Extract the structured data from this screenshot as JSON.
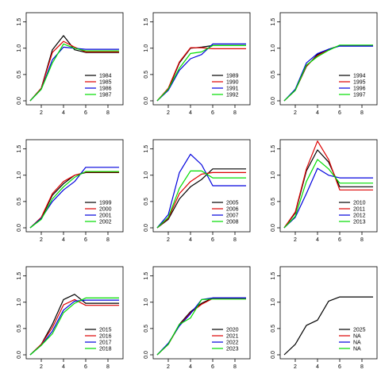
{
  "colors": {
    "palette": [
      "#000000",
      "#dd0000",
      "#0000dd",
      "#00dd00"
    ],
    "axis": "#000000",
    "background": "#ffffff"
  },
  "chart_data": [
    {
      "type": "line",
      "x": [
        1,
        2,
        3,
        4,
        5,
        6,
        7,
        8,
        9
      ],
      "xlim": [
        1,
        9
      ],
      "ylim": [
        0,
        1.6
      ],
      "xticks": [
        "2",
        "4",
        "6",
        "8"
      ],
      "yticks": [
        "0.0",
        "0.5",
        "1.0",
        "1.5"
      ],
      "legend_position": "bottom-right",
      "series": [
        {
          "name": "1984",
          "values": [
            0,
            0.24,
            0.97,
            1.24,
            0.97,
            0.92,
            0.92,
            0.92,
            0.92
          ]
        },
        {
          "name": "1985",
          "values": [
            0,
            0.24,
            0.92,
            1.13,
            1.02,
            0.93,
            0.93,
            0.93,
            0.93
          ]
        },
        {
          "name": "1986",
          "values": [
            0,
            0.22,
            0.78,
            1.02,
            1.0,
            0.98,
            0.98,
            0.98,
            0.98
          ]
        },
        {
          "name": "1987",
          "values": [
            0,
            0.22,
            0.72,
            1.08,
            1.0,
            0.95,
            0.95,
            0.95,
            0.95
          ]
        }
      ]
    },
    {
      "type": "line",
      "x": [
        1,
        2,
        3,
        4,
        5,
        6,
        7,
        8,
        9
      ],
      "xlim": [
        1,
        9
      ],
      "ylim": [
        0,
        1.6
      ],
      "xticks": [
        "2",
        "4",
        "6",
        "8"
      ],
      "yticks": [
        "0.0",
        "0.5",
        "1.0",
        "1.5"
      ],
      "legend_position": "bottom-right",
      "series": [
        {
          "name": "1989",
          "values": [
            0,
            0.22,
            0.72,
            1.0,
            1.02,
            1.05,
            1.05,
            1.05,
            1.05
          ]
        },
        {
          "name": "1990",
          "values": [
            0,
            0.24,
            0.74,
            1.01,
            1.01,
            0.99,
            0.99,
            0.99,
            0.99
          ]
        },
        {
          "name": "1991",
          "values": [
            0,
            0.2,
            0.58,
            0.8,
            0.88,
            1.08,
            1.08,
            1.08,
            1.08
          ]
        },
        {
          "name": "1992",
          "values": [
            0,
            0.22,
            0.62,
            0.9,
            0.93,
            1.05,
            1.05,
            1.05,
            1.05
          ]
        }
      ]
    },
    {
      "type": "line",
      "x": [
        1,
        2,
        3,
        4,
        5,
        6,
        7,
        8,
        9
      ],
      "xlim": [
        1,
        9
      ],
      "ylim": [
        0,
        1.6
      ],
      "xticks": [
        "2",
        "4",
        "6",
        "8"
      ],
      "yticks": [
        "0.0",
        "0.5",
        "1.0",
        "1.5"
      ],
      "legend_position": "bottom-right",
      "series": [
        {
          "name": "1994",
          "values": [
            0,
            0.2,
            0.65,
            0.88,
            0.98,
            1.05,
            1.05,
            1.05,
            1.05
          ]
        },
        {
          "name": "1995",
          "values": [
            0,
            0.2,
            0.66,
            0.86,
            0.97,
            1.05,
            1.05,
            1.05,
            1.05
          ]
        },
        {
          "name": "1996",
          "values": [
            0,
            0.22,
            0.72,
            0.9,
            0.98,
            1.04,
            1.04,
            1.04,
            1.04
          ]
        },
        {
          "name": "1997",
          "values": [
            0,
            0.2,
            0.68,
            0.84,
            0.96,
            1.06,
            1.06,
            1.06,
            1.06
          ]
        }
      ]
    },
    {
      "type": "line",
      "x": [
        1,
        2,
        3,
        4,
        5,
        6,
        7,
        8,
        9
      ],
      "xlim": [
        1,
        9
      ],
      "ylim": [
        0,
        1.6
      ],
      "xticks": [
        "2",
        "4",
        "6",
        "8"
      ],
      "yticks": [
        "0.0",
        "0.5",
        "1.0",
        "1.5"
      ],
      "legend_position": "bottom-right",
      "series": [
        {
          "name": "1999",
          "values": [
            0,
            0.18,
            0.62,
            0.84,
            1.0,
            1.05,
            1.05,
            1.05,
            1.05
          ]
        },
        {
          "name": "2000",
          "values": [
            0,
            0.2,
            0.65,
            0.88,
            1.0,
            1.06,
            1.06,
            1.06,
            1.06
          ]
        },
        {
          "name": "2001",
          "values": [
            0,
            0.18,
            0.5,
            0.72,
            0.88,
            1.15,
            1.15,
            1.15,
            1.15
          ]
        },
        {
          "name": "2002",
          "values": [
            0,
            0.16,
            0.55,
            0.78,
            0.96,
            1.07,
            1.07,
            1.07,
            1.07
          ]
        }
      ]
    },
    {
      "type": "line",
      "x": [
        1,
        2,
        3,
        4,
        5,
        6,
        7,
        8,
        9
      ],
      "xlim": [
        1,
        9
      ],
      "ylim": [
        0,
        1.6
      ],
      "xticks": [
        "2",
        "4",
        "6",
        "8"
      ],
      "yticks": [
        "0.0",
        "0.5",
        "1.0",
        "1.5"
      ],
      "legend_position": "bottom-right",
      "series": [
        {
          "name": "2005",
          "values": [
            0,
            0.16,
            0.55,
            0.78,
            0.92,
            1.12,
            1.12,
            1.12,
            1.12
          ]
        },
        {
          "name": "2006",
          "values": [
            0,
            0.18,
            0.65,
            0.88,
            1.02,
            1.05,
            1.05,
            1.05,
            1.05
          ]
        },
        {
          "name": "2007",
          "values": [
            0,
            0.25,
            1.05,
            1.4,
            1.2,
            0.8,
            0.8,
            0.8,
            0.8
          ]
        },
        {
          "name": "2008",
          "values": [
            0,
            0.2,
            0.75,
            1.08,
            1.08,
            0.95,
            0.95,
            0.95,
            0.95
          ]
        }
      ]
    },
    {
      "type": "line",
      "x": [
        1,
        2,
        3,
        4,
        5,
        6,
        7,
        8,
        9
      ],
      "xlim": [
        1,
        9
      ],
      "ylim": [
        0,
        1.6
      ],
      "xticks": [
        "2",
        "4",
        "6",
        "8"
      ],
      "yticks": [
        "0.0",
        "0.5",
        "1.0",
        "1.5"
      ],
      "legend_position": "bottom-right",
      "series": [
        {
          "name": "2010",
          "values": [
            0,
            0.28,
            1.08,
            1.48,
            1.25,
            0.78,
            0.78,
            0.78,
            0.78
          ]
        },
        {
          "name": "2011",
          "values": [
            0,
            0.3,
            1.12,
            1.65,
            1.3,
            0.72,
            0.72,
            0.72,
            0.72
          ]
        },
        {
          "name": "2012",
          "values": [
            0,
            0.2,
            0.65,
            1.13,
            1.0,
            0.95,
            0.95,
            0.95,
            0.95
          ]
        },
        {
          "name": "2013",
          "values": [
            0,
            0.22,
            0.88,
            1.3,
            1.12,
            0.85,
            0.85,
            0.85,
            0.85
          ]
        }
      ]
    },
    {
      "type": "line",
      "x": [
        1,
        2,
        3,
        4,
        5,
        6,
        7,
        8,
        9
      ],
      "xlim": [
        1,
        9
      ],
      "ylim": [
        0,
        1.6
      ],
      "xticks": [
        "2",
        "4",
        "6",
        "8"
      ],
      "yticks": [
        "0.0",
        "0.5",
        "1.0",
        "1.5"
      ],
      "legend_position": "bottom-right",
      "series": [
        {
          "name": "2015",
          "values": [
            0,
            0.2,
            0.58,
            1.05,
            1.15,
            0.98,
            0.98,
            0.98,
            0.98
          ]
        },
        {
          "name": "2016",
          "values": [
            0,
            0.2,
            0.52,
            0.95,
            1.05,
            0.94,
            0.94,
            0.94,
            0.94
          ]
        },
        {
          "name": "2017",
          "values": [
            0,
            0.18,
            0.45,
            0.85,
            1.02,
            1.04,
            1.04,
            1.04,
            1.04
          ]
        },
        {
          "name": "2018",
          "values": [
            0,
            0.18,
            0.4,
            0.8,
            0.98,
            1.08,
            1.08,
            1.08,
            1.08
          ]
        }
      ]
    },
    {
      "type": "line",
      "x": [
        1,
        2,
        3,
        4,
        5,
        6,
        7,
        8,
        9
      ],
      "xlim": [
        1,
        9
      ],
      "ylim": [
        0,
        1.6
      ],
      "xticks": [
        "2",
        "4",
        "6",
        "8"
      ],
      "yticks": [
        "0.0",
        "0.5",
        "1.0",
        "1.5"
      ],
      "legend_position": "bottom-right",
      "series": [
        {
          "name": "2020",
          "values": [
            0,
            0.2,
            0.58,
            0.82,
            0.98,
            1.08,
            1.08,
            1.08,
            1.08
          ]
        },
        {
          "name": "2021",
          "values": [
            0,
            0.2,
            0.56,
            0.8,
            0.96,
            1.07,
            1.07,
            1.07,
            1.07
          ]
        },
        {
          "name": "2022",
          "values": [
            0,
            0.22,
            0.55,
            0.78,
            1.05,
            1.08,
            1.08,
            1.08,
            1.08
          ]
        },
        {
          "name": "2023",
          "values": [
            0,
            0.2,
            0.58,
            0.7,
            1.05,
            1.06,
            1.06,
            1.06,
            1.06
          ]
        }
      ]
    },
    {
      "type": "line",
      "x": [
        1,
        2,
        3,
        4,
        5,
        6,
        7,
        8,
        9
      ],
      "xlim": [
        1,
        9
      ],
      "ylim": [
        0,
        1.6
      ],
      "xticks": [
        "2",
        "4",
        "6",
        "8"
      ],
      "yticks": [
        "0.0",
        "0.5",
        "1.0",
        "1.5"
      ],
      "legend_position": "bottom-right",
      "series": [
        {
          "name": "2025",
          "values": [
            0,
            0.2,
            0.56,
            0.66,
            1.02,
            1.1,
            1.1,
            1.1,
            1.1
          ]
        },
        {
          "name": "NA",
          "values": null
        },
        {
          "name": "NA",
          "values": null
        },
        {
          "name": "NA",
          "values": null
        }
      ]
    }
  ]
}
